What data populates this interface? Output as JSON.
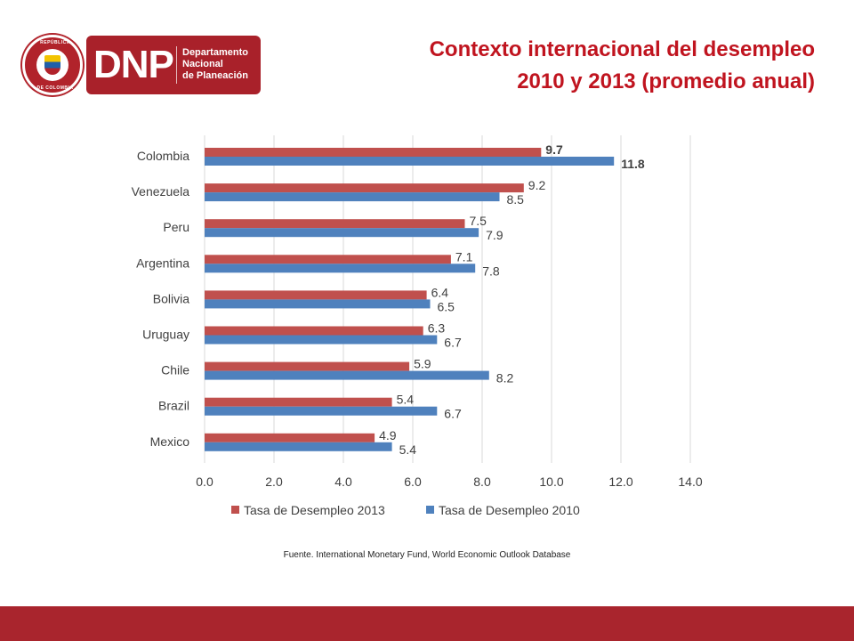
{
  "logo": {
    "seal_text_top": "REPÚBLICA",
    "seal_text_bottom": "DE COLOMBIA",
    "acronym": "DNP",
    "name_lines": [
      "Departamento",
      "Nacional",
      "de Planeación"
    ]
  },
  "title": {
    "line1": "Contexto internacional del desempleo",
    "line2": "2010 y 2013 (promedio anual)"
  },
  "source": "Fuente. International Monetary Fund, World Economic Outlook Database",
  "colors": {
    "series_2013": "#c0504d",
    "series_2010": "#4f81bd",
    "title": "#c0141f",
    "footer": "#a9252d"
  },
  "chart_data": {
    "type": "bar",
    "orientation": "horizontal",
    "categories": [
      "Colombia",
      "Venezuela",
      "Peru",
      "Argentina",
      "Bolivia",
      "Uruguay",
      "Chile",
      "Brazil",
      "Mexico"
    ],
    "series": [
      {
        "name": "Tasa de Desempleo 2013",
        "values": [
          9.7,
          9.2,
          7.5,
          7.1,
          6.4,
          6.3,
          5.9,
          5.4,
          4.9
        ]
      },
      {
        "name": "Tasa de Desempleo 2010",
        "values": [
          11.8,
          8.5,
          7.9,
          7.8,
          6.5,
          6.7,
          8.2,
          6.7,
          5.4
        ]
      }
    ],
    "xlim": [
      0,
      14
    ],
    "x_ticks": [
      "0.0",
      "2.0",
      "4.0",
      "6.0",
      "8.0",
      "10.0",
      "12.0",
      "14.0"
    ],
    "grid": true,
    "legend_position": "bottom",
    "bold_labels_category": "Colombia"
  }
}
